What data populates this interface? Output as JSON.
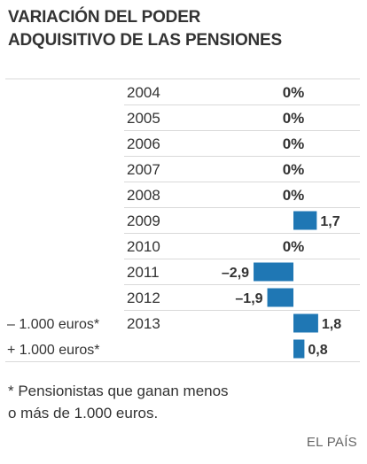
{
  "title_lines": [
    "VARIACIÓN DEL PODER",
    "ADQUISITIVO DE LAS PENSIONES"
  ],
  "note_lines": [
    "* Pensionistas que ganan menos",
    "o más de 1.000 euros."
  ],
  "source": "EL PAÍS",
  "colors": {
    "bar": "#1f77b4",
    "rule": "#d9d9d9",
    "text": "#333333"
  },
  "chart_data": {
    "type": "bar",
    "orientation": "horizontal",
    "title": "VARIACIÓN DEL PODER ADQUISITIVO DE LAS PENSIONES",
    "unit": "%",
    "rows": [
      {
        "year": "2004",
        "group": "",
        "value": 0,
        "label": "0%"
      },
      {
        "year": "2005",
        "group": "",
        "value": 0,
        "label": "0%"
      },
      {
        "year": "2006",
        "group": "",
        "value": 0,
        "label": "0%"
      },
      {
        "year": "2007",
        "group": "",
        "value": 0,
        "label": "0%"
      },
      {
        "year": "2008",
        "group": "",
        "value": 0,
        "label": "0%"
      },
      {
        "year": "2009",
        "group": "",
        "value": 1.7,
        "label": "1,7"
      },
      {
        "year": "2010",
        "group": "",
        "value": 0,
        "label": "0%"
      },
      {
        "year": "2011",
        "group": "",
        "value": -2.9,
        "label": "–2,9"
      },
      {
        "year": "2012",
        "group": "",
        "value": -1.9,
        "label": "–1,9"
      },
      {
        "year": "2013",
        "group": "– 1.000 euros*",
        "value": 1.8,
        "label": "1,8"
      },
      {
        "year": "",
        "group": "+ 1.000 euros*",
        "value": 0.8,
        "label": "0,8"
      }
    ]
  }
}
